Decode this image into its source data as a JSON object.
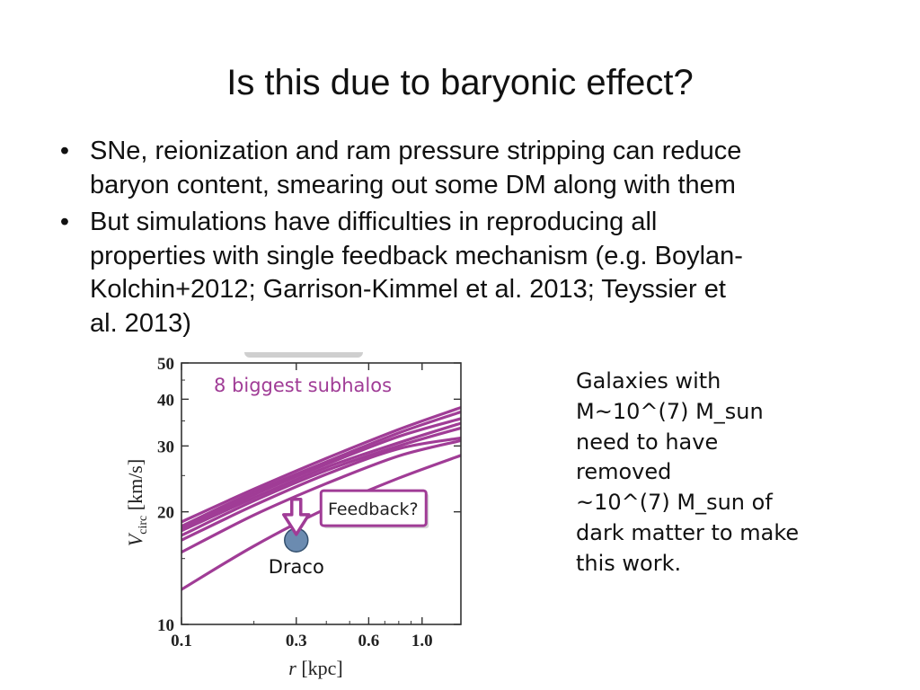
{
  "slide": {
    "title": "Is this due to baryonic effect?",
    "bullet_symbol": "•",
    "bullets": [
      {
        "lines": [
          "SNe, reionization and ram pressure stripping can reduce",
          "baryon content, smearing out some DM along with them"
        ]
      },
      {
        "lines": [
          "But simulations have difficulties in reproducing all",
          "properties with single feedback mechanism (e.g. Boylan-",
          "Kolchin+2012; Garrison-Kimmel et al. 2013; Teyssier et",
          "al. 2013)"
        ]
      }
    ],
    "side_note": {
      "lines": [
        "Galaxies with",
        "M~10^(7) M_sun",
        "need to have",
        "removed",
        "~10^(7) M_sun of",
        "dark matter to make",
        "this work."
      ]
    }
  },
  "chart_data": {
    "type": "line",
    "x_scale": "log",
    "y_scale": "log",
    "xlim": [
      0.1,
      1.45
    ],
    "ylim": [
      10,
      50
    ],
    "xticks": [
      {
        "value": 0.1,
        "label": "0.1"
      },
      {
        "value": 0.3,
        "label": "0.3"
      },
      {
        "value": 0.6,
        "label": "0.6"
      },
      {
        "value": 1.0,
        "label": "1.0"
      }
    ],
    "yticks": [
      {
        "value": 10,
        "label": "10"
      },
      {
        "value": 20,
        "label": "20"
      },
      {
        "value": 30,
        "label": "30"
      },
      {
        "value": 40,
        "label": "40"
      },
      {
        "value": 50,
        "label": "50"
      }
    ],
    "xlabel": {
      "main": "r",
      "unit": "[kpc]"
    },
    "ylabel": {
      "main": "V",
      "sub": "circ",
      "unit": "[km/s]"
    },
    "series_label": "8 biggest subhalos",
    "series_color": "#a03c96",
    "x": [
      0.1,
      0.2,
      0.4,
      0.8,
      1.45
    ],
    "series": [
      {
        "values": [
          18.8,
          23.0,
          27.8,
          33.2,
          38.0
        ]
      },
      {
        "values": [
          18.3,
          22.6,
          27.2,
          32.5,
          37.0
        ]
      },
      {
        "values": [
          18.0,
          22.2,
          26.8,
          31.8,
          35.5
        ]
      },
      {
        "values": [
          17.8,
          21.8,
          26.3,
          30.6,
          34.5
        ]
      },
      {
        "values": [
          17.3,
          21.4,
          25.8,
          30.0,
          33.5
        ]
      },
      {
        "values": [
          16.8,
          20.8,
          25.2,
          29.5,
          31.5
        ]
      },
      {
        "values": [
          15.6,
          19.6,
          23.8,
          28.2,
          31.0
        ]
      },
      {
        "values": [
          12.4,
          16.2,
          20.4,
          24.6,
          28.3
        ]
      }
    ],
    "points": [
      {
        "name": "Draco",
        "x": 0.3,
        "y": 16.8,
        "color": "#6b8bb0"
      }
    ],
    "annotations": {
      "arrow": {
        "from": [
          0.3,
          21.6
        ],
        "to": [
          0.3,
          17.4
        ],
        "color": "#a03c96"
      },
      "box_label": "Feedback?",
      "box_anchor": [
        0.38,
        20.4
      ]
    }
  }
}
